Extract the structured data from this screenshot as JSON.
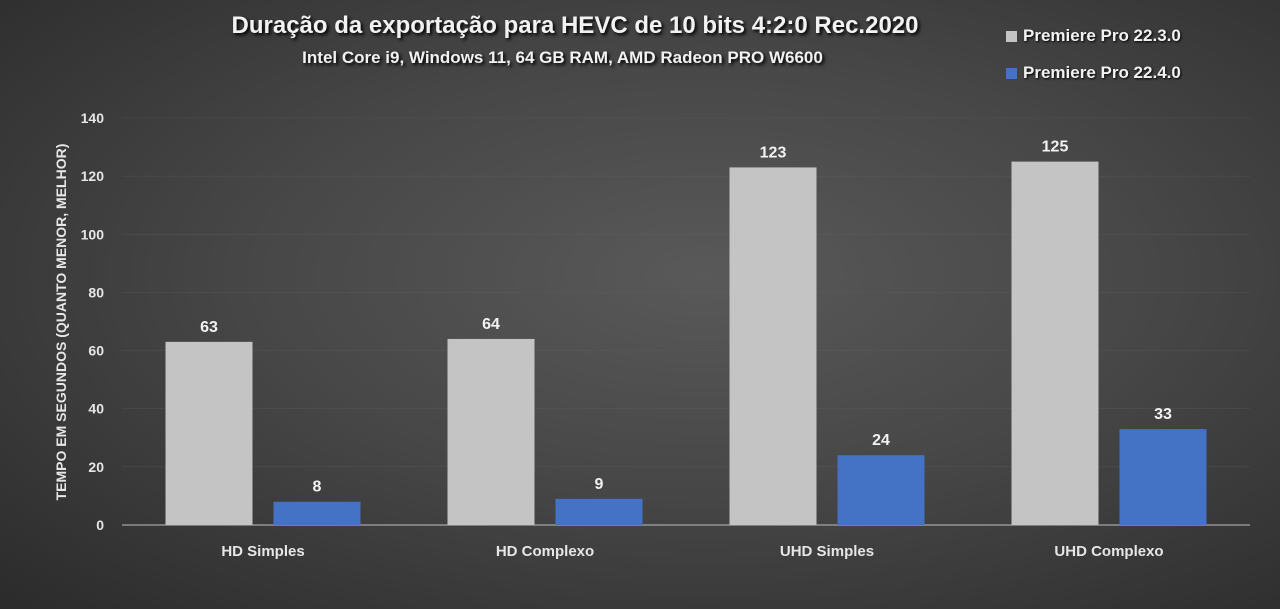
{
  "chart_data": {
    "type": "bar",
    "title": "Duração da exportação para HEVC de 10 bits 4:2:0 Rec.2020",
    "subtitle": "Intel Core i9, Windows 11, 64 GB RAM, AMD Radeon PRO W6600",
    "xlabel": "",
    "ylabel": "TEMPO EM SEGUNDOS (QUANTO MENOR, MELHOR)",
    "ylim": [
      0,
      140
    ],
    "yticks": [
      0,
      20,
      40,
      60,
      80,
      100,
      120,
      140
    ],
    "categories": [
      "HD Simples",
      "HD Complexo",
      "UHD Simples",
      "UHD Complexo"
    ],
    "series": [
      {
        "name": "Premiere Pro 22.3.0",
        "values": [
          63,
          64,
          123,
          125
        ],
        "color": "#c4c4c4"
      },
      {
        "name": "Premiere Pro 22.4.0",
        "values": [
          8,
          9,
          24,
          33
        ],
        "color": "#4472c4"
      }
    ],
    "legend_position": "top-right",
    "grid": false,
    "data_labels": true
  }
}
